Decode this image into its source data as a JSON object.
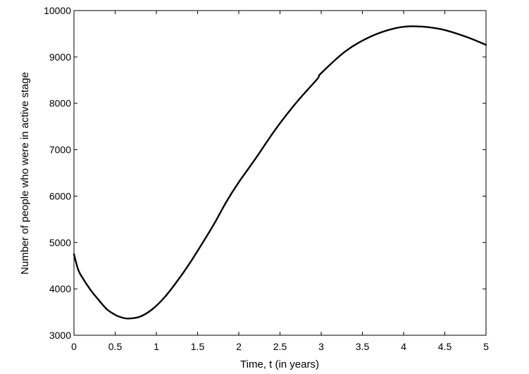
{
  "chart_data": {
    "type": "line",
    "title": "",
    "xlabel": "Time, t (in years)",
    "ylabel": "Number of people who were in active stage",
    "xlim": [
      0,
      5
    ],
    "ylim": [
      3000,
      10000
    ],
    "xticks": [
      0,
      0.5,
      1,
      1.5,
      2,
      2.5,
      3,
      3.5,
      4,
      4.5,
      5
    ],
    "xtick_labels": [
      "0",
      "0.5",
      "1",
      "1.5",
      "2",
      "2.5",
      "3",
      "3.5",
      "4",
      "4.5",
      "5"
    ],
    "yticks": [
      3000,
      4000,
      5000,
      6000,
      7000,
      8000,
      9000,
      10000
    ],
    "ytick_labels": [
      "3000",
      "4000",
      "5000",
      "6000",
      "7000",
      "8000",
      "9000",
      "10000"
    ],
    "grid": false,
    "series": [
      {
        "line_color": "#000000",
        "x": [
          0,
          0.05,
          0.1,
          0.2,
          0.3,
          0.4,
          0.5,
          0.55,
          0.65,
          0.8,
          0.95,
          1.1,
          1.25,
          1.4,
          1.55,
          1.7,
          1.85,
          2.0,
          2.2,
          2.45,
          2.7,
          2.95,
          3.0,
          3.3,
          3.6,
          3.9,
          4.15,
          4.45,
          4.75,
          5.0
        ],
        "y": [
          4750,
          4420,
          4250,
          3980,
          3760,
          3560,
          3440,
          3400,
          3360,
          3400,
          3560,
          3820,
          4160,
          4540,
          4960,
          5400,
          5880,
          6300,
          6800,
          7450,
          8020,
          8520,
          8650,
          9130,
          9440,
          9620,
          9660,
          9600,
          9440,
          9260
        ]
      }
    ]
  }
}
